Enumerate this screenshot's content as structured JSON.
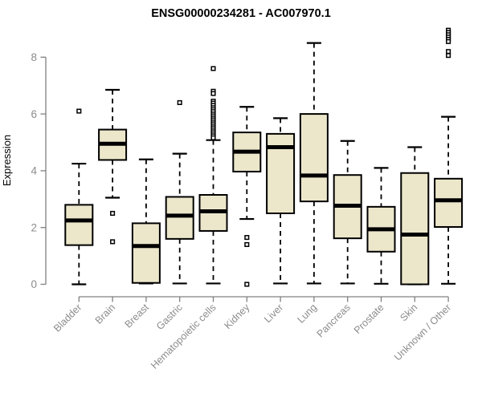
{
  "page": {
    "background": "#ffffff"
  },
  "chart_data": {
    "type": "boxplot",
    "title": "ENSG00000234281 - AC007970.1",
    "ylabel": "Expression",
    "xlabel": "",
    "ylim": [
      0,
      9.1
    ],
    "yticks": [
      0,
      2,
      4,
      6,
      8
    ],
    "grid": false,
    "legend": "none",
    "colors": {
      "box_fill": "#ece7cb",
      "box_stroke": "#000000",
      "median": "#000000",
      "whisker": "#000000",
      "outlier_fill": "#ffffff",
      "outlier_stroke": "#000000",
      "axis_line": "#808080",
      "tick_label": "#8c8c8c",
      "title": "#000000"
    },
    "categories": [
      "Bladder",
      "Brain",
      "Breast",
      "Gastric",
      "Hematopoietic cells",
      "Kidney",
      "Liver",
      "Lung",
      "Pancreas",
      "Prostate",
      "Skin",
      "Unknown / Other"
    ],
    "boxes": [
      {
        "label": "Bladder",
        "whisker_low": 0.0,
        "q1": 1.38,
        "median": 2.25,
        "q3": 2.8,
        "whisker_high": 4.25,
        "outliers": [
          6.1
        ]
      },
      {
        "label": "Brain",
        "whisker_low": 3.05,
        "q1": 4.38,
        "median": 4.95,
        "q3": 5.45,
        "whisker_high": 6.85,
        "outliers": [
          2.5,
          1.5
        ]
      },
      {
        "label": "Breast",
        "whisker_low": 0.03,
        "q1": 0.05,
        "median": 1.35,
        "q3": 2.15,
        "whisker_high": 4.4,
        "outliers": []
      },
      {
        "label": "Gastric",
        "whisker_low": 0.03,
        "q1": 1.6,
        "median": 2.42,
        "q3": 3.08,
        "whisker_high": 4.6,
        "outliers": [
          6.4
        ]
      },
      {
        "label": "Hematopoietic cells",
        "whisker_low": 0.03,
        "q1": 1.88,
        "median": 2.57,
        "q3": 3.15,
        "whisker_high": 5.08,
        "outliers": [
          7.6,
          6.8,
          6.72,
          6.45,
          6.38,
          6.3,
          6.22,
          6.15,
          6.08,
          6.0,
          5.93,
          5.86,
          5.79,
          5.72,
          5.65,
          5.58,
          5.51,
          5.44,
          5.37,
          5.3,
          5.23,
          5.16
        ]
      },
      {
        "label": "Kidney",
        "whisker_low": 2.3,
        "q1": 3.97,
        "median": 4.67,
        "q3": 5.35,
        "whisker_high": 6.25,
        "outliers": [
          1.65,
          1.4,
          0.0
        ]
      },
      {
        "label": "Liver",
        "whisker_low": 0.03,
        "q1": 2.5,
        "median": 4.83,
        "q3": 5.3,
        "whisker_high": 5.85,
        "outliers": []
      },
      {
        "label": "Lung",
        "whisker_low": 0.03,
        "q1": 2.92,
        "median": 3.83,
        "q3": 6.0,
        "whisker_high": 8.5,
        "outliers": []
      },
      {
        "label": "Pancreas",
        "whisker_low": 0.03,
        "q1": 1.62,
        "median": 2.77,
        "q3": 3.85,
        "whisker_high": 5.05,
        "outliers": []
      },
      {
        "label": "Prostate",
        "whisker_low": 0.02,
        "q1": 1.15,
        "median": 1.94,
        "q3": 2.73,
        "whisker_high": 4.1,
        "outliers": []
      },
      {
        "label": "Skin",
        "whisker_low": 0.0,
        "q1": 0.0,
        "median": 1.75,
        "q3": 3.92,
        "whisker_high": 4.83,
        "outliers": []
      },
      {
        "label": "Unknown / Other",
        "whisker_low": 0.02,
        "q1": 2.02,
        "median": 2.96,
        "q3": 3.72,
        "whisker_high": 5.9,
        "outliers": [
          8.95,
          8.87,
          8.79,
          8.71,
          8.63,
          8.55,
          8.2,
          8.06
        ]
      }
    ]
  }
}
